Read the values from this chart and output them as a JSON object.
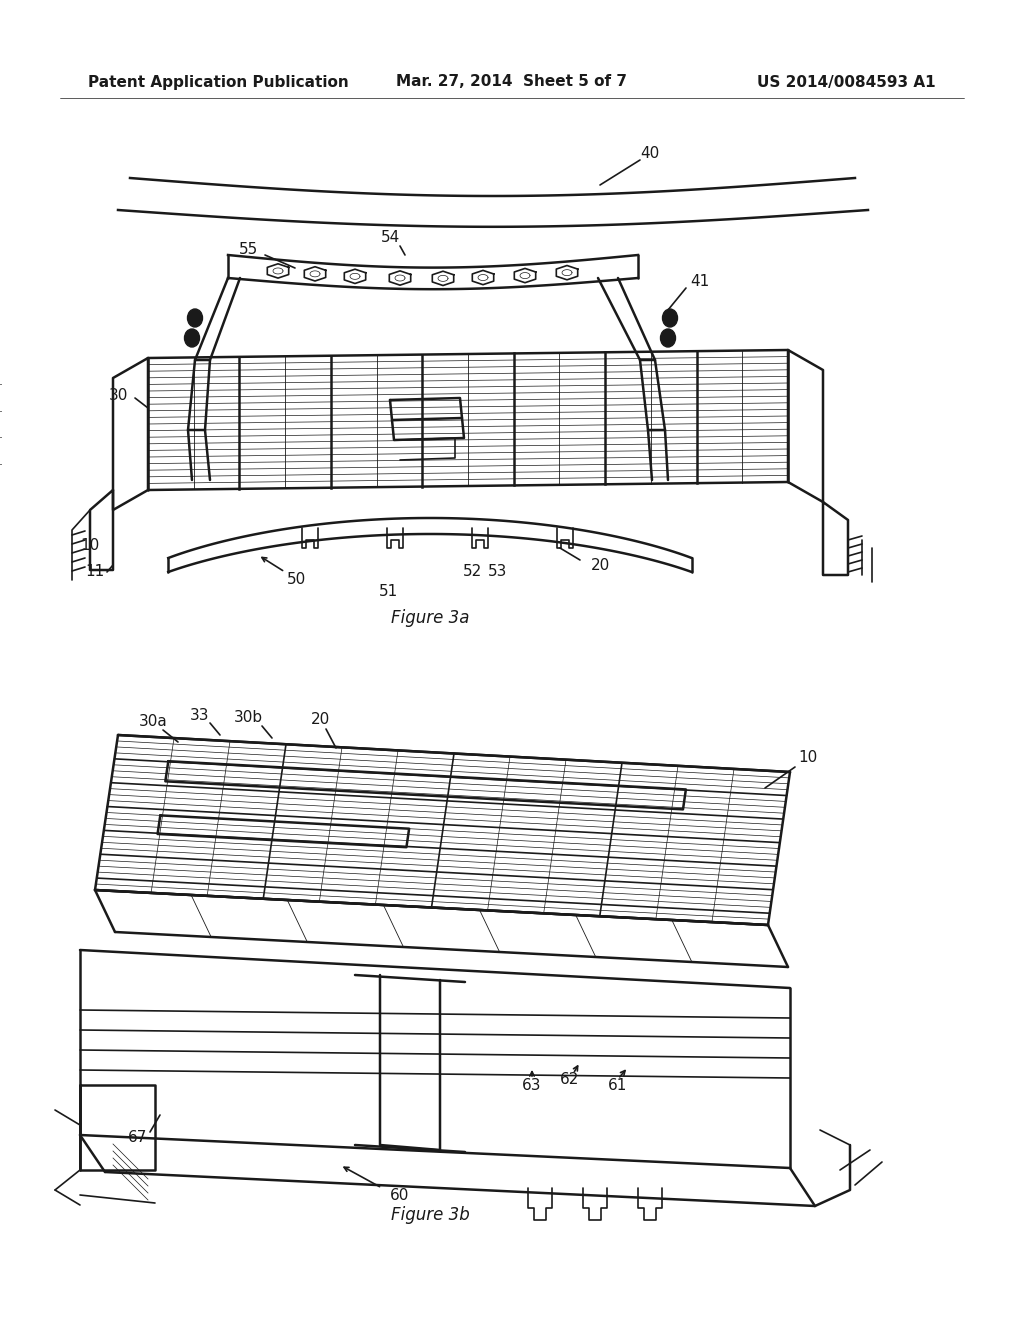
{
  "background_color": "#ffffff",
  "page_width": 10.24,
  "page_height": 13.2,
  "header_left": "Patent Application Publication",
  "header_center": "Mar. 27, 2014  Sheet 5 of 7",
  "header_right": "US 2014/0084593 A1",
  "line_color": "#1a1a1a",
  "fig3a_caption": "Figure 3a",
  "fig3b_caption": "Figure 3b"
}
